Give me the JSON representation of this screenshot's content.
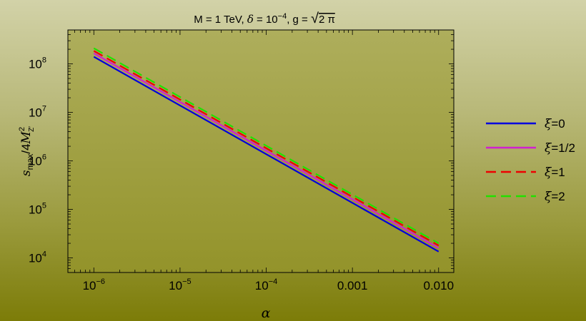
{
  "chart_data": {
    "type": "line",
    "title": {
      "p1": "M = 1 TeV, ",
      "delta_sym": "δ",
      "p2": " = 10",
      "delta_exp": "−4",
      "p3": ", g = ",
      "sqrt_arg": "2 π"
    },
    "xlabel": "α",
    "ylabel": {
      "s": "s",
      "s_sub": "max",
      "slash": "/4",
      "M": "M",
      "M_sup": "2",
      "M_sub": "Z′"
    },
    "x_scale": "log",
    "y_scale": "log",
    "xlim": [
      5e-07,
      0.015
    ],
    "ylim": [
      5000,
      500000000
    ],
    "x_ticks": [
      {
        "value": 1e-06,
        "base": "10",
        "exp": "−6",
        "text": ""
      },
      {
        "value": 1e-05,
        "base": "10",
        "exp": "−5",
        "text": ""
      },
      {
        "value": 0.0001,
        "base": "10",
        "exp": "−4",
        "text": ""
      },
      {
        "value": 0.001,
        "base": "",
        "exp": "",
        "text": "0.001"
      },
      {
        "value": 0.01,
        "base": "",
        "exp": "",
        "text": "0.010"
      }
    ],
    "y_ticks": [
      {
        "value": 10000,
        "base": "10",
        "exp": "4"
      },
      {
        "value": 100000,
        "base": "10",
        "exp": "5"
      },
      {
        "value": 1000000,
        "base": "10",
        "exp": "6"
      },
      {
        "value": 10000000,
        "base": "10",
        "exp": "7"
      },
      {
        "value": 100000000,
        "base": "10",
        "exp": "8"
      }
    ],
    "series": [
      {
        "name": "ξ=0",
        "sym": "ξ",
        "rest": "=0",
        "color": "#0000dd",
        "dash": "solid",
        "x": [
          1e-06,
          0.01
        ],
        "y": [
          140000000,
          13500
        ]
      },
      {
        "name": "ξ=1/2",
        "sym": "ξ",
        "rest": "=1/2",
        "color": "#d020d0",
        "dash": "solid",
        "x": [
          1e-06,
          0.01
        ],
        "y": [
          165000000,
          16000
        ]
      },
      {
        "name": "ξ=1",
        "sym": "ξ",
        "rest": "=1",
        "color": "#ee0000",
        "dash": "dashed",
        "x": [
          1e-06,
          0.01
        ],
        "y": [
          185000000,
          18000
        ]
      },
      {
        "name": "ξ=2",
        "sym": "ξ",
        "rest": "=2",
        "color": "#22e000",
        "dash": "dashed",
        "x": [
          1e-06,
          0.01
        ],
        "y": [
          210000000,
          20000
        ]
      }
    ],
    "grid": false,
    "legend": "right",
    "colors": {
      "plot_background": "#9e9e3a",
      "frame": "#000000"
    }
  }
}
